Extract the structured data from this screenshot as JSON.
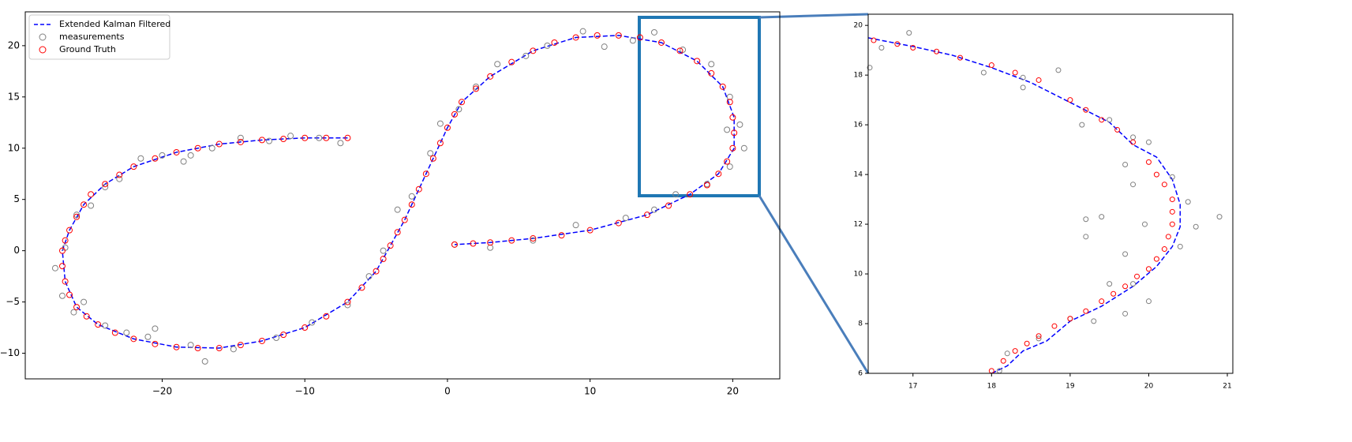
{
  "chart_data": [
    {
      "type": "scatter",
      "xlim": [
        -29.6,
        23.3
      ],
      "ylim": [
        -12.5,
        23.3
      ],
      "xticks": [
        {
          "value": -20,
          "label": "−20"
        },
        {
          "value": -10,
          "label": "−10"
        },
        0,
        10,
        20
      ],
      "yticks": [
        {
          "value": -10,
          "label": "−10"
        },
        {
          "value": -5,
          "label": "−5"
        },
        0,
        5,
        10,
        15,
        20
      ],
      "legend": "upper left",
      "series": [
        {
          "name": "Extended Kalman Filtered",
          "type": "line",
          "color": "#0000ff",
          "x": [
            -7,
            -10,
            -13,
            -16,
            -19,
            -22,
            -24,
            -25.5,
            -26.5,
            -27,
            -26.8,
            -26,
            -24.5,
            -22,
            -19,
            -16,
            -13,
            -10,
            -7,
            -5,
            -4,
            -3,
            -2,
            -1,
            0,
            1,
            3,
            6,
            9,
            12,
            15,
            17.5,
            19.3,
            20.1,
            20.1,
            19,
            17,
            14,
            10,
            6,
            3,
            0.5
          ],
          "values": [
            11,
            11,
            10.8,
            10.4,
            9.6,
            8.2,
            6.5,
            4.5,
            2,
            0,
            -3,
            -5.5,
            -7.2,
            -8.6,
            -9.4,
            -9.5,
            -8.8,
            -7.5,
            -5,
            -2,
            0.5,
            3,
            6,
            9,
            12,
            14.5,
            17,
            19.5,
            20.8,
            21,
            20.3,
            18.5,
            16,
            13,
            10,
            7.5,
            5.5,
            3.5,
            2,
            1.2,
            0.8,
            0.6
          ]
        },
        {
          "name": "measurements",
          "type": "scatter",
          "color": "#808080",
          "x": [
            -7.5,
            -9,
            -11,
            -12.5,
            -14.5,
            -16.5,
            -18,
            -18.5,
            -20,
            -21.5,
            -23,
            -24,
            -25,
            -26,
            -26.8,
            -27.5,
            -27,
            -26.2,
            -25.5,
            -24,
            -22.5,
            -21,
            -20.5,
            -18,
            -17,
            -15,
            -12,
            -9.5,
            -7,
            -5.5,
            -4.5,
            -3.5,
            -2.5,
            -1.2,
            -0.5,
            0.8,
            2,
            3.5,
            5.5,
            7,
            9.5,
            11,
            13,
            14.5,
            16.5,
            18.5,
            19.8,
            20.5,
            20.8,
            19.6,
            19.8,
            18.2,
            16,
            14.5,
            12.5,
            9,
            6,
            3,
            0.5
          ],
          "values": [
            10.5,
            11,
            11.2,
            10.7,
            11,
            10,
            9.3,
            8.7,
            9.3,
            9,
            7,
            6.2,
            4.4,
            3.5,
            0.3,
            -1.7,
            -4.4,
            -6,
            -5,
            -7.3,
            -8,
            -8.4,
            -7.6,
            -9.2,
            -10.8,
            -9.6,
            -8.5,
            -7,
            -5.3,
            -2.5,
            0,
            4,
            5.3,
            9.5,
            12.4,
            13.8,
            16,
            18.2,
            19,
            20,
            21.4,
            19.9,
            20.5,
            21.3,
            19.6,
            18.2,
            15,
            12.3,
            10,
            11.8,
            8.2,
            6.5,
            5.5,
            4,
            3.2,
            2.5,
            1,
            0.3,
            0.6
          ]
        },
        {
          "name": "Ground Truth",
          "type": "scatter",
          "color": "#ff0000",
          "x": [
            -7,
            -8.5,
            -10,
            -11.5,
            -13,
            -14.5,
            -16,
            -17.5,
            -19,
            -20.5,
            -22,
            -23,
            -24,
            -25,
            -25.5,
            -26,
            -26.5,
            -26.8,
            -27,
            -27,
            -26.8,
            -26.5,
            -26,
            -25.3,
            -24.5,
            -23.3,
            -22,
            -20.5,
            -19,
            -17.5,
            -16,
            -14.5,
            -13,
            -11.5,
            -10,
            -8.5,
            -7,
            -6,
            -5,
            -4.5,
            -4,
            -3.5,
            -3,
            -2.5,
            -2,
            -1.5,
            -1,
            -0.5,
            0,
            0.5,
            1,
            2,
            3,
            4.5,
            6,
            7.5,
            9,
            10.5,
            12,
            13.5,
            15,
            16.3,
            17.5,
            18.5,
            19.3,
            19.8,
            20,
            20.1,
            20,
            19.6,
            19,
            18.2,
            17,
            15.5,
            14,
            12,
            10,
            8,
            6,
            4.5,
            3,
            1.8,
            0.5
          ],
          "values": [
            11,
            11,
            11,
            10.9,
            10.8,
            10.6,
            10.4,
            10,
            9.6,
            9,
            8.2,
            7.4,
            6.5,
            5.5,
            4.5,
            3.3,
            2,
            1,
            0,
            -1.5,
            -3,
            -4.3,
            -5.5,
            -6.4,
            -7.2,
            -8,
            -8.6,
            -9.1,
            -9.4,
            -9.5,
            -9.5,
            -9.2,
            -8.8,
            -8.2,
            -7.5,
            -6.4,
            -5,
            -3.6,
            -2,
            -0.8,
            0.5,
            1.8,
            3,
            4.5,
            6,
            7.5,
            9,
            10.5,
            12,
            13.3,
            14.5,
            15.8,
            17,
            18.4,
            19.5,
            20.3,
            20.8,
            21,
            21,
            20.8,
            20.3,
            19.5,
            18.5,
            17.3,
            16,
            14.5,
            13,
            11.5,
            10,
            8.7,
            7.5,
            6.4,
            5.5,
            4.4,
            3.5,
            2.7,
            2,
            1.5,
            1.2,
            1,
            0.8,
            0.7,
            0.6
          ]
        }
      ]
    },
    {
      "type": "scatter",
      "xlim": [
        16.43,
        21.07
      ],
      "ylim": [
        6,
        20.45
      ],
      "xticks": [
        17,
        18,
        19,
        20,
        21
      ],
      "yticks": [
        6,
        8,
        10,
        12,
        14,
        16,
        18,
        20
      ],
      "series": [
        {
          "type": "line",
          "color": "#0000ff",
          "x": [
            16.43,
            17,
            17.5,
            18,
            18.5,
            19,
            19.5,
            19.8,
            20.1,
            20.3,
            20.4,
            20.4,
            20.3,
            20.1,
            19.8,
            19.4,
            19,
            18.7,
            18.4,
            18.2,
            18
          ],
          "values": [
            19.5,
            19.15,
            18.8,
            18.3,
            17.7,
            16.9,
            16.1,
            15.2,
            14.7,
            13.8,
            12.8,
            11.9,
            11.1,
            10.3,
            9.5,
            8.7,
            8.1,
            7.3,
            6.9,
            6.3,
            6
          ]
        },
        {
          "type": "scatter",
          "color": "#808080",
          "x": [
            16.45,
            16.6,
            16.95,
            17.9,
            18.4,
            18.4,
            18.85,
            19.15,
            19.5,
            19.7,
            19.8,
            20,
            19.8,
            20.3,
            20.5,
            20.6,
            20.9,
            19.4,
            19.2,
            19.2,
            19.95,
            19.7,
            19.5,
            20,
            19.7,
            19,
            18.6,
            18.2,
            18.1,
            20.4,
            19.8,
            19.3
          ],
          "values": [
            18.3,
            19.1,
            19.7,
            18.1,
            17.9,
            17.5,
            18.2,
            16,
            16.2,
            14.4,
            15.5,
            15.3,
            13.6,
            13.9,
            12.9,
            11.9,
            12.3,
            12.3,
            12.2,
            11.5,
            12,
            10.8,
            9.6,
            8.9,
            8.4,
            8.2,
            7.4,
            6.8,
            6.1,
            11.1,
            9.6,
            8.1
          ]
        },
        {
          "type": "scatter",
          "color": "#ff0000",
          "x": [
            16.5,
            16.8,
            17,
            17.3,
            17.6,
            18,
            18.3,
            18.6,
            19,
            19.2,
            19.4,
            19.6,
            19.8,
            20,
            20.1,
            20.2,
            20.3,
            20.3,
            20.3,
            20.25,
            20.2,
            20.1,
            20,
            19.85,
            19.7,
            19.55,
            19.4,
            19.2,
            19,
            18.8,
            18.6,
            18.45,
            18.3,
            18.15,
            18
          ],
          "values": [
            19.4,
            19.25,
            19.1,
            18.95,
            18.7,
            18.4,
            18.1,
            17.8,
            17,
            16.6,
            16.2,
            15.8,
            15.3,
            14.5,
            14,
            13.6,
            13,
            12.5,
            12,
            11.5,
            11,
            10.6,
            10.2,
            9.9,
            9.5,
            9.2,
            8.9,
            8.5,
            8.2,
            7.9,
            7.5,
            7.2,
            6.9,
            6.5,
            6.1
          ]
        }
      ]
    }
  ]
}
